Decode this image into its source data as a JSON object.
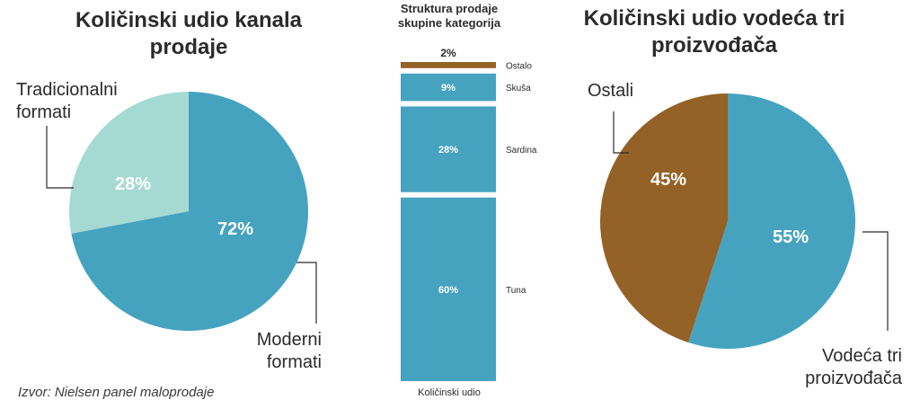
{
  "chart_data": [
    {
      "type": "pie",
      "title": "Količinski udio kanala prodaje",
      "slices": [
        {
          "label": "Moderni formati",
          "value": 72,
          "value_label": "72%",
          "color": "#46a3c0"
        },
        {
          "label": "Tradicionalni formati",
          "value": 28,
          "value_label": "28%",
          "color": "#a5dad3"
        }
      ]
    },
    {
      "type": "bar",
      "title": "Struktura prodaje skupine kategorija",
      "xlabel": "Količinski udio",
      "stacked": true,
      "segments": [
        {
          "label": "Ostalo",
          "value": 2,
          "value_label": "2%",
          "color": "#946126"
        },
        {
          "label": "Skuša",
          "value": 9,
          "value_label": "9%",
          "color": "#46a3c0"
        },
        {
          "label": "Sardina",
          "value": 28,
          "value_label": "28%",
          "color": "#46a3c0"
        },
        {
          "label": "Tuna",
          "value": 60,
          "value_label": "60%",
          "color": "#46a3c0"
        }
      ]
    },
    {
      "type": "pie",
      "title": "Količinski udio vodeća tri proizvođača",
      "slices": [
        {
          "label": "Vodeća tri proizvođača",
          "value": 55,
          "value_label": "55%",
          "color": "#46a3c0"
        },
        {
          "label": "Ostali",
          "value": 45,
          "value_label": "45%",
          "color": "#946126"
        }
      ]
    }
  ],
  "left": {
    "title_line1": "Količinski udio kanala",
    "title_line2": "prodaje",
    "label_traditional_1": "Tradicionalni",
    "label_traditional_2": "formati",
    "label_modern_1": "Moderni",
    "label_modern_2": "formati"
  },
  "middle": {
    "title_line1": "Struktura prodaje",
    "title_line2": "skupine kategorija"
  },
  "right": {
    "title_line1": "Količinski udio vodeća tri",
    "title_line2": "proizvođača",
    "label_others": "Ostali",
    "label_top3_1": "Vodeća tri",
    "label_top3_2": "proizvođača"
  },
  "source": "Izvor: Nielsen panel maloprodaje"
}
